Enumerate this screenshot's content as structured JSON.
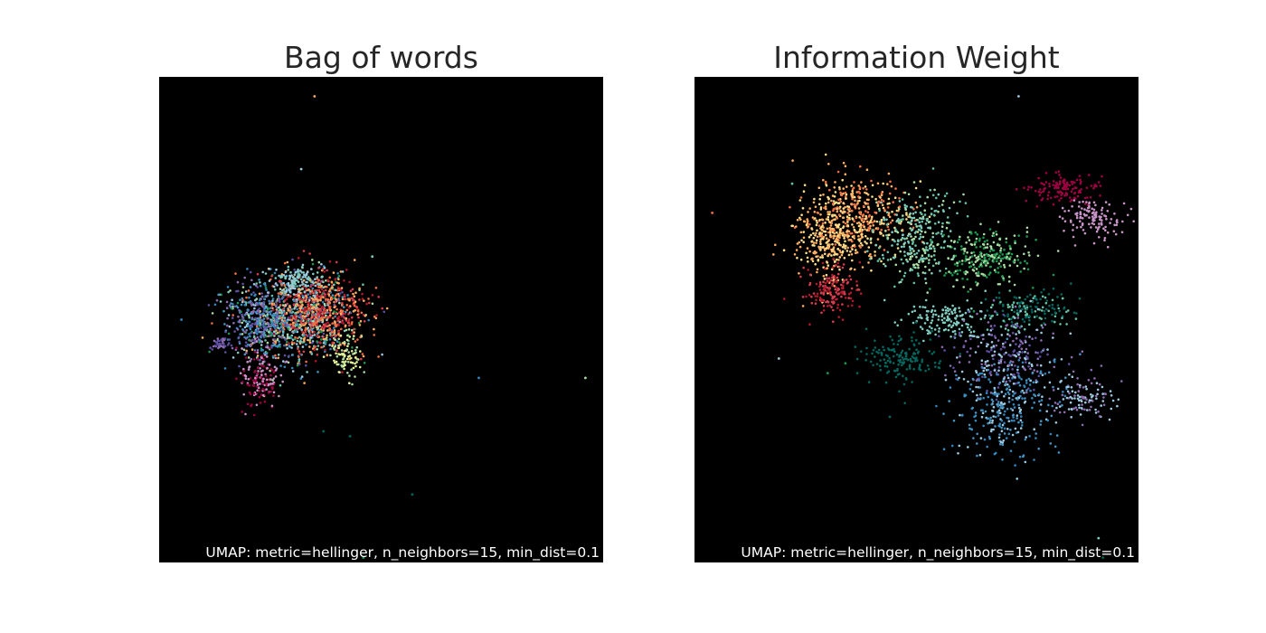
{
  "chart_data": [
    {
      "type": "scatter",
      "title": "Bag of words",
      "caption": "UMAP: metric=hellinger, n_neighbors=15, min_dist=0.1",
      "background": "#000000",
      "grid": false,
      "legend": "none",
      "palette": [
        "#9e0142",
        "#d53e4f",
        "#f46d43",
        "#fdae61",
        "#fee08b",
        "#e6f598",
        "#abdda4",
        "#66c2a5",
        "#3288bd",
        "#5e4fa2",
        "#8c6bb1",
        "#c994c7",
        "#80cdc1",
        "#01665e",
        "#1a9850",
        "#4393c3",
        "#b2182b",
        "#9ecae1"
      ],
      "clusters": [
        {
          "cx": 0.3,
          "cy": 0.5,
          "sx": 0.065,
          "sy": 0.045,
          "n": 900,
          "colors": [
            3,
            7,
            8,
            9,
            12,
            14,
            15,
            17,
            2,
            6
          ]
        },
        {
          "cx": 0.37,
          "cy": 0.48,
          "sx": 0.05,
          "sy": 0.04,
          "n": 500,
          "colors": [
            1,
            2,
            3,
            16
          ]
        },
        {
          "cx": 0.22,
          "cy": 0.5,
          "sx": 0.035,
          "sy": 0.035,
          "n": 250,
          "colors": [
            8,
            9,
            10,
            15
          ]
        },
        {
          "cx": 0.23,
          "cy": 0.62,
          "sx": 0.025,
          "sy": 0.035,
          "n": 160,
          "colors": [
            0,
            11
          ]
        },
        {
          "cx": 0.31,
          "cy": 0.42,
          "sx": 0.03,
          "sy": 0.015,
          "n": 120,
          "colors": [
            12,
            17
          ]
        },
        {
          "cx": 0.42,
          "cy": 0.57,
          "sx": 0.02,
          "sy": 0.02,
          "n": 90,
          "colors": [
            6,
            5
          ]
        },
        {
          "cx": 0.14,
          "cy": 0.55,
          "sx": 0.015,
          "sy": 0.008,
          "n": 40,
          "colors": [
            10,
            9
          ]
        }
      ],
      "outliers": [
        {
          "x": 0.35,
          "y": 0.04,
          "c": 3
        },
        {
          "x": 0.32,
          "y": 0.19,
          "c": 17
        },
        {
          "x": 0.05,
          "y": 0.5,
          "c": 8
        },
        {
          "x": 0.48,
          "y": 0.37,
          "c": 12
        },
        {
          "x": 0.72,
          "y": 0.62,
          "c": 8
        },
        {
          "x": 0.96,
          "y": 0.62,
          "c": 6
        },
        {
          "x": 0.57,
          "y": 0.86,
          "c": 13
        },
        {
          "x": 0.37,
          "y": 0.73,
          "c": 13
        },
        {
          "x": 0.43,
          "y": 0.74,
          "c": 13
        },
        {
          "x": 0.46,
          "y": 0.99,
          "c": 14
        }
      ]
    },
    {
      "type": "scatter",
      "title": "Information Weight",
      "caption": "UMAP: metric=hellinger, n_neighbors=15, min_dist=0.1",
      "background": "#000000",
      "grid": false,
      "legend": "none",
      "palette": [
        "#9e0142",
        "#d53e4f",
        "#f46d43",
        "#fdae61",
        "#fee08b",
        "#e6f598",
        "#abdda4",
        "#66c2a5",
        "#3288bd",
        "#5e4fa2",
        "#8c6bb1",
        "#c994c7",
        "#80cdc1",
        "#01665e",
        "#1a9850",
        "#4393c3",
        "#b2182b",
        "#9ecae1"
      ],
      "clusters": [
        {
          "cx": 0.36,
          "cy": 0.29,
          "sx": 0.06,
          "sy": 0.045,
          "n": 450,
          "colors": [
            2,
            3,
            4
          ]
        },
        {
          "cx": 0.3,
          "cy": 0.34,
          "sx": 0.035,
          "sy": 0.04,
          "n": 250,
          "colors": [
            3,
            4
          ]
        },
        {
          "cx": 0.31,
          "cy": 0.44,
          "sx": 0.03,
          "sy": 0.025,
          "n": 150,
          "colors": [
            1,
            16
          ]
        },
        {
          "cx": 0.5,
          "cy": 0.33,
          "sx": 0.05,
          "sy": 0.045,
          "n": 300,
          "colors": [
            7,
            12,
            6
          ]
        },
        {
          "cx": 0.66,
          "cy": 0.37,
          "sx": 0.05,
          "sy": 0.03,
          "n": 260,
          "colors": [
            14,
            6
          ]
        },
        {
          "cx": 0.56,
          "cy": 0.5,
          "sx": 0.045,
          "sy": 0.02,
          "n": 140,
          "colors": [
            12
          ]
        },
        {
          "cx": 0.76,
          "cy": 0.48,
          "sx": 0.05,
          "sy": 0.02,
          "n": 160,
          "colors": [
            7,
            13
          ]
        },
        {
          "cx": 0.46,
          "cy": 0.58,
          "sx": 0.045,
          "sy": 0.025,
          "n": 150,
          "colors": [
            13
          ]
        },
        {
          "cx": 0.7,
          "cy": 0.57,
          "sx": 0.06,
          "sy": 0.04,
          "n": 240,
          "colors": [
            9,
            10,
            17
          ]
        },
        {
          "cx": 0.7,
          "cy": 0.68,
          "sx": 0.06,
          "sy": 0.05,
          "n": 320,
          "colors": [
            8,
            15,
            17
          ]
        },
        {
          "cx": 0.87,
          "cy": 0.66,
          "sx": 0.04,
          "sy": 0.025,
          "n": 110,
          "colors": [
            10,
            17
          ]
        },
        {
          "cx": 0.83,
          "cy": 0.23,
          "sx": 0.04,
          "sy": 0.015,
          "n": 130,
          "colors": [
            0
          ]
        },
        {
          "cx": 0.9,
          "cy": 0.29,
          "sx": 0.035,
          "sy": 0.02,
          "n": 120,
          "colors": [
            11
          ]
        }
      ],
      "outliers": [
        {
          "x": 0.73,
          "y": 0.04,
          "c": 17
        },
        {
          "x": 0.04,
          "y": 0.28,
          "c": 2
        },
        {
          "x": 0.22,
          "y": 0.22,
          "c": 7
        },
        {
          "x": 0.19,
          "y": 0.58,
          "c": 17
        },
        {
          "x": 0.3,
          "y": 0.61,
          "c": 14
        },
        {
          "x": 0.34,
          "y": 0.59,
          "c": 14
        },
        {
          "x": 0.44,
          "y": 0.7,
          "c": 13
        },
        {
          "x": 0.91,
          "y": 0.95,
          "c": 12
        },
        {
          "x": 0.92,
          "y": 0.99,
          "c": 13
        }
      ]
    }
  ]
}
